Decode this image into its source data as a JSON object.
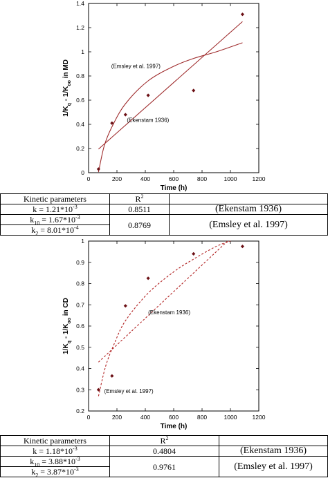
{
  "chart_data": [
    {
      "type": "scatter",
      "title": "",
      "xlabel": "Time (h)",
      "ylabel": "1/K_q - 1/K_oo in MD",
      "ylabel_parts": {
        "a": "1/K",
        "sub1": "q",
        "b": " - 1/K",
        "sub2": "oo",
        "c": "  in MD"
      },
      "xlim": [
        0,
        1200
      ],
      "ylim": [
        0,
        1.4
      ],
      "xticks": [
        0,
        200,
        400,
        600,
        800,
        1000,
        1200
      ],
      "yticks": [
        0,
        0.2,
        0.4,
        0.6,
        0.8,
        1,
        1.2,
        1.4
      ],
      "ytick_labels": [
        "0",
        "0.2",
        "0.4",
        "0.6",
        "0.8",
        "1",
        "1.2",
        "1.4"
      ],
      "grid": false,
      "marker_color": "#6b0f14",
      "line_color": "#9e2a2b",
      "line_style": "solid",
      "points": {
        "x": [
          70,
          165,
          260,
          420,
          740,
          1085
        ],
        "y": [
          0.03,
          0.41,
          0.48,
          0.64,
          0.68,
          1.31
        ]
      },
      "curves": [
        {
          "label": "Ekenstam 1936",
          "x": [
            70,
            1085
          ],
          "y": [
            0.195,
            1.25
          ]
        },
        {
          "label": "Emsley et al. 1997",
          "x": [
            70,
            110,
            165,
            260,
            420,
            600,
            740,
            900,
            1085
          ],
          "y": [
            0.005,
            0.22,
            0.38,
            0.57,
            0.76,
            0.88,
            0.945,
            1.0,
            1.075
          ]
        }
      ],
      "annotations": [
        {
          "text": "(Emsley et al. 1997)",
          "x": 160,
          "y": 0.865
        },
        {
          "text": "(Ekenstam 1936)",
          "x": 270,
          "y": 0.42
        }
      ]
    },
    {
      "type": "scatter",
      "title": "",
      "xlabel": "Time (h)",
      "ylabel": "1/K_q - 1/K_oo in CD",
      "ylabel_parts": {
        "a": "1/K",
        "sub1": "q",
        "b": " - 1/K",
        "sub2": "oo",
        "c": "  in CD"
      },
      "xlim": [
        0,
        1200
      ],
      "ylim": [
        0.2,
        1
      ],
      "xticks": [
        0,
        200,
        400,
        600,
        800,
        1000,
        1200
      ],
      "yticks": [
        0.2,
        0.3,
        0.4,
        0.5,
        0.6,
        0.7,
        0.8,
        0.9,
        1
      ],
      "ytick_labels": [
        "0.2",
        "0.3",
        "0.4",
        "0.5",
        "0.6",
        "0.7",
        "0.8",
        "0.9",
        "1"
      ],
      "grid": false,
      "marker_color": "#6b0f14",
      "line_color": "#b22222",
      "line_style": "dashed",
      "points": {
        "x": [
          70,
          165,
          260,
          420,
          740,
          1085
        ],
        "y": [
          0.3,
          0.365,
          0.695,
          0.825,
          0.94,
          0.975
        ]
      },
      "curves": [
        {
          "label": "Ekenstam 1936",
          "x": [
            70,
            980
          ],
          "y": [
            0.43,
            1.0
          ]
        },
        {
          "label": "Emsley et al. 1997",
          "x": [
            70,
            120,
            180,
            260,
            420,
            600,
            740,
            900,
            1000
          ],
          "y": [
            0.27,
            0.41,
            0.515,
            0.625,
            0.755,
            0.855,
            0.915,
            0.975,
            1.0
          ]
        }
      ],
      "annotations": [
        {
          "text": "(Ekenstam 1936)",
          "x": 420,
          "y": 0.655
        },
        {
          "text": "(Emsley et al. 1997)",
          "x": 110,
          "y": 0.285
        }
      ]
    }
  ],
  "tables": {
    "md": {
      "header": "Kinetic parameters",
      "r_label": "R",
      "r_sup": "2",
      "row1": {
        "k_name": "k",
        "k_val": " = 1.21*10",
        "k_exp": "-3",
        "r2": "0.8511",
        "ref": "(Ekenstam 1936)"
      },
      "row2": {
        "k10_name": "k",
        "k10_sub": "10",
        "k10_val": " = 1.67*10",
        "k10_exp": "-3",
        "k2_name": "k",
        "k2_sub": "2",
        "k2_val": " = 8.01*10",
        "k2_exp": "-4",
        "r2": "0.8769",
        "ref": "(Emsley et al. 1997)"
      }
    },
    "cd": {
      "header": "Kinetic parameters",
      "r_label": "R",
      "r_sup": "2",
      "row1": {
        "k_name": "k",
        "k_val": " = 1.18*10",
        "k_exp": "-3",
        "r2": "0.4804",
        "ref": "(Ekenstam 1936)"
      },
      "row2": {
        "k10_name": "k",
        "k10_sub": "10",
        "k10_val": " = 3.88*10",
        "k10_exp": "-3",
        "k2_name": "k",
        "k2_sub": "2",
        "k2_val": " = 3.87*10",
        "k2_exp": "-3",
        "r2": "0.9761",
        "ref": "(Emsley et al. 1997)"
      }
    }
  }
}
